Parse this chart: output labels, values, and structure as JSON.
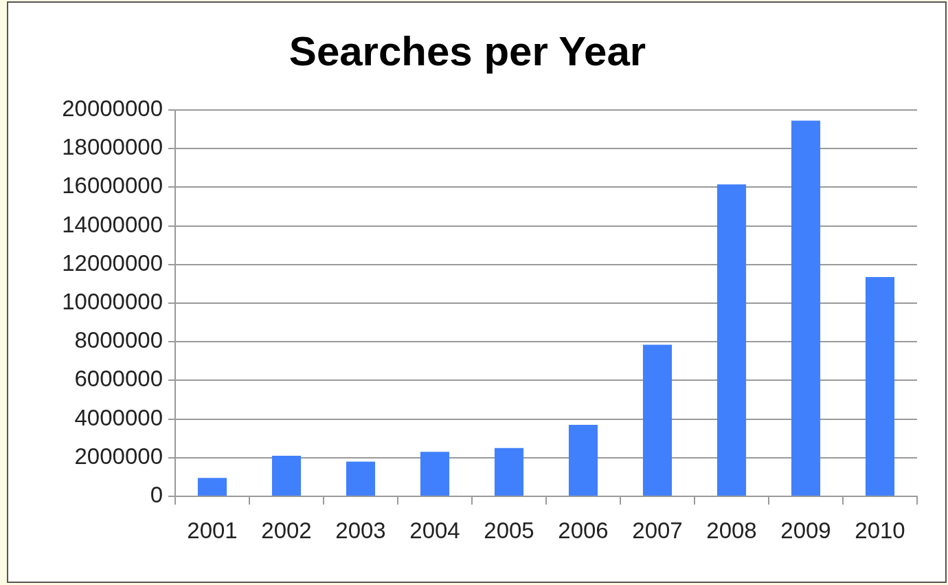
{
  "chart_data": {
    "type": "bar",
    "title": "Searches per Year",
    "categories": [
      "2001",
      "2002",
      "2003",
      "2004",
      "2005",
      "2006",
      "2007",
      "2008",
      "2009",
      "2010"
    ],
    "values": [
      950000,
      2100000,
      1800000,
      2300000,
      2500000,
      3700000,
      7850000,
      16150000,
      19450000,
      11350000
    ],
    "color": "#4180fc",
    "ylim": [
      0,
      20000000
    ],
    "yticks": [
      0,
      2000000,
      4000000,
      6000000,
      8000000,
      10000000,
      12000000,
      14000000,
      16000000,
      18000000,
      20000000
    ],
    "grid": "y",
    "legend": false
  }
}
